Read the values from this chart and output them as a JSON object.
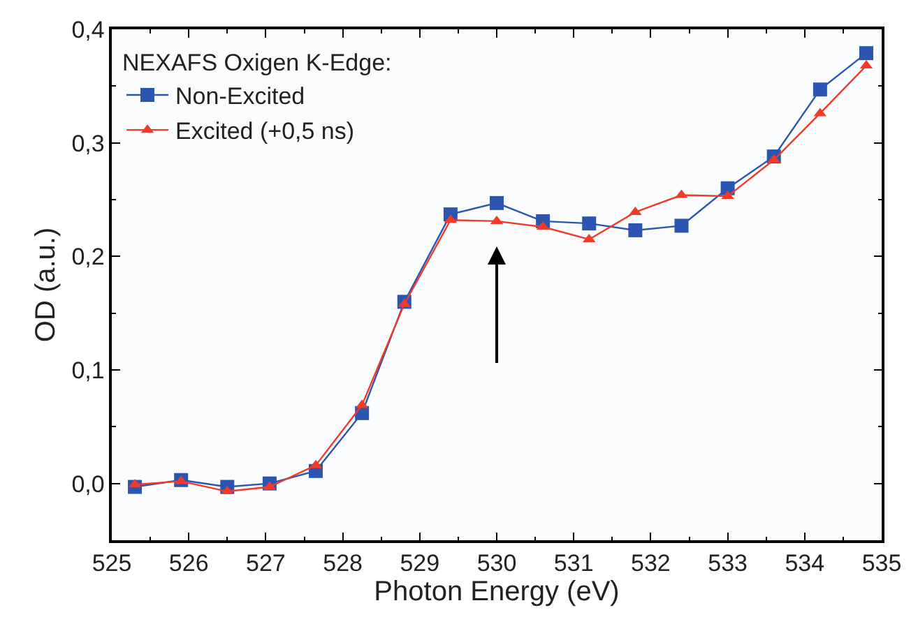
{
  "chart_data": {
    "type": "line",
    "xlabel": "Photon Energy (eV)",
    "ylabel": "OD (a.u.)",
    "legend_title": "NEXAFS Oxigen K-Edge:",
    "x": [
      525.3,
      525.9,
      526.5,
      527.05,
      527.65,
      528.25,
      528.8,
      529.4,
      530.0,
      530.6,
      531.2,
      531.8,
      532.4,
      533.0,
      533.6,
      534.2,
      534.8
    ],
    "series": [
      {
        "name": "Non-Excited",
        "color": "#2b55b0",
        "marker": "square",
        "values": [
          -0.003,
          0.003,
          -0.003,
          0.0,
          0.011,
          0.062,
          0.16,
          0.237,
          0.247,
          0.231,
          0.229,
          0.223,
          0.227,
          0.26,
          0.288,
          0.347,
          0.379
        ]
      },
      {
        "name": "Excited (+0,5 ns)",
        "color": "#f03a2a",
        "marker": "triangle",
        "values": [
          -0.001,
          0.002,
          -0.007,
          -0.003,
          0.016,
          0.069,
          0.158,
          0.232,
          0.231,
          0.226,
          0.215,
          0.239,
          0.254,
          0.253,
          0.285,
          0.326,
          0.368
        ]
      }
    ],
    "xlim": [
      525,
      535
    ],
    "xticks": [
      525,
      526,
      527,
      528,
      529,
      530,
      531,
      532,
      533,
      534,
      535
    ],
    "ylim": [
      -0.05,
      0.4
    ],
    "yticks": [
      {
        "value": 0,
        "label": "0,0"
      },
      {
        "value": 0.1,
        "label": "0,1"
      },
      {
        "value": 0.2,
        "label": "0,2"
      },
      {
        "value": 0.3,
        "label": "0,3"
      },
      {
        "value": 0.4,
        "label": "0,4"
      }
    ],
    "legend": "top left",
    "line_style": "solid"
  }
}
